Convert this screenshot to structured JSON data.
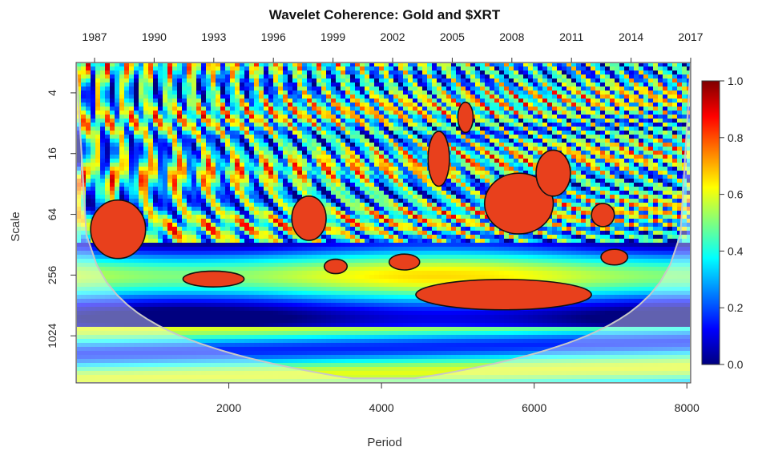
{
  "chart_data": {
    "type": "heatmap",
    "title": "Wavelet Coherence: Gold and $XRT",
    "xlabel": "Period",
    "ylabel": "Scale",
    "x_ticks": [
      2000,
      4000,
      6000,
      8000
    ],
    "x_range": [
      0,
      8050
    ],
    "top_ticks": [
      "1987",
      "1990",
      "1993",
      "1996",
      "1999",
      "2002",
      "2005",
      "2008",
      "2011",
      "2014",
      "2017"
    ],
    "y_ticks": [
      "4",
      "16",
      "64",
      "256",
      "1024"
    ],
    "y_scale": "log2",
    "y_range": [
      2,
      3000
    ],
    "colorbar": {
      "ticks": [
        "0.0",
        "0.2",
        "0.4",
        "0.6",
        "0.8",
        "1.0"
      ],
      "range": [
        0,
        1
      ],
      "colors": [
        "#00007f",
        "#0000ff",
        "#007fff",
        "#00ffff",
        "#7fff7f",
        "#ffff00",
        "#ff7f00",
        "#ff0000",
        "#7f0000"
      ]
    },
    "significant_regions": [
      {
        "x": 550,
        "scale": 90,
        "x_extent": [
          180,
          900
        ],
        "scale_extent": [
          50,
          190
        ]
      },
      {
        "x": 1800,
        "scale": 280,
        "x_extent": [
          1300,
          2100
        ],
        "scale_extent": [
          230,
          330
        ]
      },
      {
        "x": 3050,
        "scale": 70,
        "x_extent": [
          2800,
          3250
        ],
        "scale_extent": [
          40,
          110
        ]
      },
      {
        "x": 3400,
        "scale": 210,
        "x_extent": [
          3250,
          3550
        ],
        "scale_extent": [
          180,
          250
        ]
      },
      {
        "x": 4300,
        "scale": 190,
        "x_extent": [
          4100,
          4500
        ],
        "scale_extent": [
          160,
          230
        ]
      },
      {
        "x": 5600,
        "scale": 400,
        "x_extent": [
          4500,
          6800
        ],
        "scale_extent": [
          280,
          560
        ]
      },
      {
        "x": 4750,
        "scale": 18,
        "x_extent": [
          4620,
          4900
        ],
        "scale_extent": [
          10,
          35
        ]
      },
      {
        "x": 5100,
        "scale": 7,
        "x_extent": [
          5000,
          5200
        ],
        "scale_extent": [
          5,
          10
        ]
      },
      {
        "x": 5800,
        "scale": 50,
        "x_extent": [
          5400,
          6300
        ],
        "scale_extent": [
          25,
          100
        ]
      },
      {
        "x": 6250,
        "scale": 25,
        "x_extent": [
          6050,
          6500
        ],
        "scale_extent": [
          14,
          40
        ]
      },
      {
        "x": 6900,
        "scale": 65,
        "x_extent": [
          6750,
          7050
        ],
        "scale_extent": [
          50,
          85
        ]
      },
      {
        "x": 7050,
        "scale": 170,
        "x_extent": [
          6900,
          7250
        ],
        "scale_extent": [
          140,
          200
        ]
      }
    ]
  }
}
